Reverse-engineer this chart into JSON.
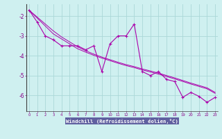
{
  "xlabel": "Windchill (Refroidissement éolien,°C)",
  "x": [
    0,
    1,
    2,
    3,
    4,
    5,
    6,
    7,
    8,
    9,
    10,
    11,
    12,
    13,
    14,
    15,
    16,
    17,
    18,
    19,
    20,
    21,
    22,
    23
  ],
  "y_main": [
    -1.7,
    -2.3,
    -3.0,
    -3.2,
    -3.5,
    -3.5,
    -3.5,
    -3.7,
    -3.5,
    -4.8,
    -3.4,
    -3.0,
    -3.0,
    -2.4,
    -4.8,
    -5.0,
    -4.8,
    -5.2,
    -5.3,
    -6.1,
    -5.85,
    -6.05,
    -6.35,
    -6.1
  ],
  "y_trend1": [
    -1.7,
    -2.1,
    -2.5,
    -2.9,
    -3.15,
    -3.4,
    -3.65,
    -3.82,
    -3.98,
    -4.12,
    -4.25,
    -4.38,
    -4.5,
    -4.6,
    -4.72,
    -4.82,
    -4.93,
    -5.05,
    -5.17,
    -5.3,
    -5.43,
    -5.55,
    -5.67,
    -5.9
  ],
  "y_trend2": [
    -1.7,
    -2.05,
    -2.4,
    -2.75,
    -3.05,
    -3.3,
    -3.55,
    -3.75,
    -3.92,
    -4.07,
    -4.2,
    -4.33,
    -4.45,
    -4.55,
    -4.67,
    -4.77,
    -4.88,
    -5.0,
    -5.12,
    -5.25,
    -5.38,
    -5.5,
    -5.62,
    -5.85
  ],
  "line_color": "#aa00aa",
  "bg_color": "#cff0f0",
  "grid_color": "#aad8d8",
  "xlabel_bg": "#7070a0",
  "ylim": [
    -6.8,
    -1.4
  ],
  "xlim": [
    -0.3,
    23.3
  ],
  "yticks": [
    -6,
    -5,
    -4,
    -3,
    -2
  ],
  "xticks": [
    0,
    1,
    2,
    3,
    4,
    5,
    6,
    7,
    8,
    9,
    10,
    11,
    12,
    13,
    14,
    15,
    16,
    17,
    18,
    19,
    20,
    21,
    22,
    23
  ]
}
